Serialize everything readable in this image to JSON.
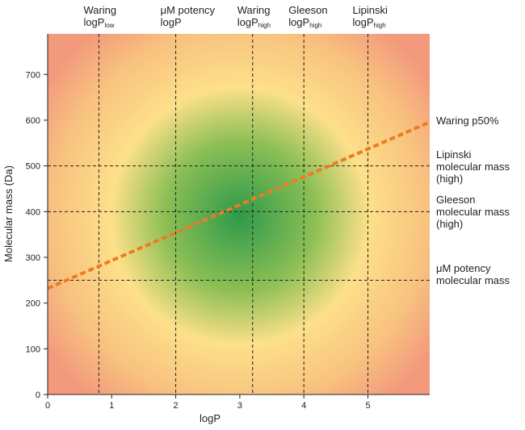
{
  "chart_data": {
    "type": "heatmap",
    "xlabel": "logP",
    "ylabel": "Molecular mass (Da)",
    "xlim": [
      0,
      6
    ],
    "ylim": [
      0,
      780
    ],
    "xticks": [
      "0",
      "1",
      "2",
      "3",
      "4",
      "5"
    ],
    "yticks": [
      "0",
      "100",
      "200",
      "300",
      "400",
      "500",
      "600",
      "700"
    ],
    "grid": false,
    "heatmap_center": {
      "logP": 3.0,
      "mass": 390
    },
    "colors": {
      "center": "#2e9a4a",
      "mid": "#fde08a",
      "outer": "#f39a7d",
      "trend_line": "#f07a23",
      "threshold_lines": "#222222"
    },
    "vertical_thresholds": [
      {
        "x": 0.8,
        "label_main": "Waring",
        "label_line2": "logP",
        "label_sub": "low"
      },
      {
        "x": 2.0,
        "label_main": "μM potency",
        "label_line2": "logP",
        "label_sub": ""
      },
      {
        "x": 3.2,
        "label_main": "Waring",
        "label_line2": "logP",
        "label_sub": "high"
      },
      {
        "x": 4.0,
        "label_main": "Gleeson",
        "label_line2": "logP",
        "label_sub": "high"
      },
      {
        "x": 5.0,
        "label_main": "Lipinski",
        "label_line2": "logP",
        "label_sub": "high"
      }
    ],
    "horizontal_thresholds": [
      {
        "y": 500,
        "label_lines": [
          "Lipinski",
          "molecular mass",
          "(high)"
        ]
      },
      {
        "y": 400,
        "label_lines": [
          "Gleeson",
          "molecular mass",
          "(high)"
        ]
      },
      {
        "y": 250,
        "label_lines": [
          "μM potency",
          "molecular mass"
        ]
      }
    ],
    "trend_line": {
      "name": "Waring p50%",
      "x": [
        0,
        6
      ],
      "y": [
        232,
        598
      ]
    }
  }
}
